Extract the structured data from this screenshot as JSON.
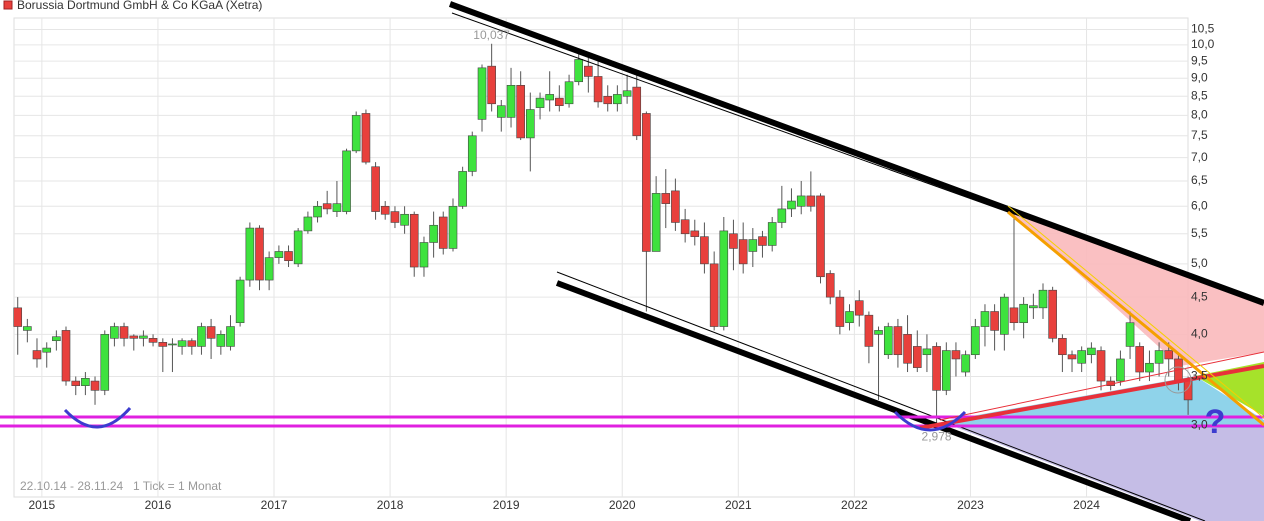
{
  "chart_data": {
    "type": "candlestick",
    "log_scale": true,
    "grid": true,
    "x": [
      2014.792,
      2014.875,
      2014.958,
      2015.042,
      2015.125,
      2015.208,
      2015.292,
      2015.375,
      2015.458,
      2015.542,
      2015.625,
      2015.708,
      2015.792,
      2015.875,
      2015.958,
      2016.042,
      2016.125,
      2016.208,
      2016.292,
      2016.375,
      2016.458,
      2016.542,
      2016.625,
      2016.708,
      2016.792,
      2016.875,
      2016.958,
      2017.042,
      2017.125,
      2017.208,
      2017.292,
      2017.375,
      2017.458,
      2017.542,
      2017.625,
      2017.708,
      2017.792,
      2017.875,
      2017.958,
      2018.042,
      2018.125,
      2018.208,
      2018.292,
      2018.375,
      2018.458,
      2018.542,
      2018.625,
      2018.708,
      2018.792,
      2018.875,
      2018.958,
      2019.042,
      2019.125,
      2019.208,
      2019.292,
      2019.375,
      2019.458,
      2019.542,
      2019.625,
      2019.708,
      2019.792,
      2019.875,
      2019.958,
      2020.042,
      2020.125,
      2020.208,
      2020.292,
      2020.375,
      2020.458,
      2020.542,
      2020.625,
      2020.708,
      2020.792,
      2020.875,
      2020.958,
      2021.042,
      2021.125,
      2021.208,
      2021.292,
      2021.375,
      2021.458,
      2021.542,
      2021.625,
      2021.708,
      2021.792,
      2021.875,
      2021.958,
      2022.042,
      2022.125,
      2022.208,
      2022.292,
      2022.375,
      2022.458,
      2022.542,
      2022.625,
      2022.708,
      2022.792,
      2022.875,
      2022.958,
      2023.042,
      2023.125,
      2023.208,
      2023.292,
      2023.375,
      2023.458,
      2023.542,
      2023.625,
      2023.708,
      2023.792,
      2023.875,
      2023.958,
      2024.042,
      2024.125,
      2024.208,
      2024.292,
      2024.375,
      2024.458,
      2024.542,
      2024.625,
      2024.708,
      2024.792,
      2024.875
    ],
    "series": [
      {
        "name": "Borussia Dortmund GmbH & Co KGaA (Xetra)",
        "color": "#e8403c",
        "up_color": "#3ee23e",
        "down_color": "#e8403c",
        "open": [
          4.35,
          4.05,
          3.8,
          3.78,
          3.92,
          4.05,
          3.45,
          3.4,
          3.45,
          3.35,
          3.95,
          4.1,
          3.98,
          3.95,
          3.95,
          3.9,
          3.87,
          3.85,
          3.92,
          3.85,
          4.1,
          3.85,
          3.85,
          4.15,
          4.75,
          5.6,
          4.75,
          5.1,
          5.2,
          5.0,
          5.55,
          5.8,
          6.05,
          5.9,
          5.9,
          7.15,
          8.05,
          6.8,
          6.0,
          5.9,
          5.65,
          5.85,
          4.95,
          5.35,
          5.8,
          5.25,
          6.0,
          6.7,
          7.9,
          9.35,
          7.95,
          7.95,
          8.8,
          7.45,
          8.2,
          8.4,
          8.45,
          8.3,
          8.9,
          9.35,
          9.05,
          8.5,
          8.3,
          8.5,
          8.75,
          8.05,
          5.2,
          6.25,
          6.3,
          5.75,
          5.55,
          5.45,
          5.0,
          4.1,
          5.5,
          5.4,
          5.2,
          5.45,
          5.3,
          5.7,
          5.95,
          6.0,
          6.2,
          6.2,
          4.85,
          4.5,
          4.15,
          4.45,
          4.25,
          4.0,
          3.75,
          4.1,
          4.0,
          3.85,
          3.75,
          3.85,
          3.35,
          3.8,
          3.55,
          3.75,
          4.1,
          4.3,
          4.0,
          4.35,
          4.15,
          4.35,
          4.35,
          4.6,
          3.95,
          3.75,
          3.65,
          3.75,
          3.8,
          3.45,
          3.45,
          3.85,
          3.85,
          3.55,
          3.65,
          3.8,
          3.7,
          3.45
        ],
        "high": [
          4.5,
          4.2,
          3.95,
          3.9,
          4.05,
          4.1,
          3.5,
          3.55,
          3.5,
          4.05,
          4.15,
          4.15,
          4.0,
          4.05,
          4.0,
          3.95,
          3.95,
          3.95,
          3.95,
          4.15,
          4.2,
          4.05,
          4.25,
          4.8,
          5.7,
          5.65,
          5.2,
          5.3,
          5.3,
          5.6,
          5.9,
          6.1,
          6.3,
          6.5,
          7.2,
          8.1,
          8.15,
          6.9,
          6.1,
          6.0,
          6.0,
          5.9,
          5.45,
          5.9,
          5.9,
          6.15,
          6.8,
          7.6,
          9.4,
          10.037,
          8.4,
          9.3,
          9.2,
          8.6,
          8.6,
          9.2,
          8.8,
          9.1,
          9.8,
          9.6,
          9.55,
          8.8,
          8.8,
          9.1,
          9.2,
          8.1,
          6.6,
          6.75,
          6.55,
          5.95,
          5.75,
          5.7,
          5.2,
          5.8,
          5.75,
          5.7,
          5.6,
          5.55,
          5.8,
          6.4,
          6.35,
          6.5,
          6.7,
          6.25,
          4.9,
          4.6,
          4.4,
          4.6,
          4.3,
          4.1,
          4.15,
          4.2,
          4.25,
          4.05,
          4.0,
          3.9,
          3.9,
          3.9,
          3.8,
          4.2,
          4.4,
          4.4,
          4.55,
          5.95,
          4.5,
          4.55,
          4.7,
          4.65,
          4.0,
          3.8,
          3.85,
          3.9,
          3.85,
          3.5,
          3.8,
          4.3,
          3.9,
          3.8,
          3.9,
          3.9,
          3.75,
          3.5
        ],
        "low": [
          3.75,
          3.9,
          3.6,
          3.6,
          3.8,
          3.4,
          3.3,
          3.3,
          3.2,
          3.3,
          3.85,
          3.85,
          3.8,
          3.85,
          3.85,
          3.55,
          3.55,
          3.75,
          3.75,
          3.75,
          3.7,
          3.75,
          3.8,
          4.1,
          4.65,
          4.6,
          4.6,
          5.0,
          4.95,
          4.95,
          5.5,
          5.7,
          5.85,
          5.8,
          5.85,
          7.1,
          6.85,
          5.75,
          5.75,
          5.6,
          5.5,
          4.8,
          4.8,
          5.1,
          5.15,
          5.2,
          5.95,
          6.6,
          7.6,
          8.1,
          7.6,
          7.7,
          7.4,
          6.7,
          7.9,
          8.1,
          8.1,
          8.2,
          8.8,
          8.6,
          8.2,
          8.1,
          8.1,
          8.3,
          7.4,
          4.3,
          5.2,
          5.6,
          5.55,
          5.35,
          5.3,
          4.85,
          4.05,
          4.05,
          4.9,
          4.85,
          4.95,
          5.1,
          5.2,
          5.6,
          5.8,
          5.85,
          5.9,
          4.7,
          4.4,
          4.0,
          4.05,
          4.1,
          3.65,
          3.25,
          3.7,
          3.6,
          3.55,
          3.55,
          3.55,
          2.978,
          3.3,
          3.5,
          3.5,
          3.7,
          3.85,
          3.8,
          3.8,
          4.05,
          3.95,
          4.2,
          4.2,
          3.9,
          3.55,
          3.55,
          3.55,
          3.65,
          3.35,
          3.35,
          3.4,
          3.7,
          3.45,
          3.45,
          3.5,
          3.5,
          3.35,
          3.1
        ],
        "close": [
          4.1,
          4.1,
          3.7,
          3.83,
          3.97,
          3.45,
          3.4,
          3.48,
          3.35,
          4.0,
          4.1,
          3.95,
          3.95,
          3.98,
          3.9,
          3.85,
          3.88,
          3.92,
          3.85,
          4.1,
          3.95,
          4.0,
          4.1,
          4.75,
          5.6,
          4.75,
          5.1,
          5.2,
          5.05,
          5.55,
          5.8,
          6.0,
          5.95,
          6.05,
          7.15,
          8.0,
          6.9,
          5.9,
          5.85,
          5.7,
          5.85,
          4.95,
          5.35,
          5.65,
          5.25,
          6.0,
          6.7,
          7.5,
          9.3,
          8.3,
          8.25,
          8.8,
          7.45,
          8.15,
          8.45,
          8.55,
          8.25,
          8.9,
          9.55,
          9.05,
          8.35,
          8.3,
          8.55,
          8.65,
          7.5,
          5.2,
          6.25,
          6.05,
          5.7,
          5.5,
          5.45,
          5.0,
          4.1,
          5.55,
          5.25,
          5.0,
          5.4,
          5.3,
          5.7,
          5.95,
          6.1,
          6.2,
          6.0,
          4.8,
          4.5,
          4.1,
          4.3,
          4.25,
          3.85,
          4.05,
          4.1,
          3.75,
          3.65,
          3.6,
          3.82,
          3.35,
          3.8,
          3.7,
          3.75,
          4.1,
          4.3,
          4.05,
          4.5,
          4.15,
          4.4,
          4.38,
          4.6,
          3.95,
          3.75,
          3.7,
          3.8,
          3.83,
          3.45,
          3.4,
          3.7,
          4.15,
          3.55,
          3.65,
          3.8,
          3.7,
          3.45,
          3.25
        ]
      }
    ],
    "high_label": {
      "value": 10.037,
      "label": "10,037"
    },
    "low_label": {
      "value": 2.978,
      "label": "2,978"
    },
    "xlim": [
      2014.76,
      2024.9
    ],
    "xticks": [
      2015,
      2016,
      2017,
      2018,
      2019,
      2020,
      2021,
      2022,
      2023,
      2024
    ],
    "ylim": [
      2.39,
      10.89
    ],
    "yticks": [
      {
        "value": 3,
        "label": "3,0"
      },
      {
        "value": 3.5,
        "label": "3,5"
      },
      {
        "value": 4,
        "label": "4,0"
      },
      {
        "value": 4.5,
        "label": "4,5"
      },
      {
        "value": 5,
        "label": "5,0"
      },
      {
        "value": 5.5,
        "label": "5,5"
      },
      {
        "value": 6,
        "label": "6,0"
      },
      {
        "value": 6.5,
        "label": "6,5"
      },
      {
        "value": 7,
        "label": "7,0"
      },
      {
        "value": 7.5,
        "label": "7,5"
      },
      {
        "value": 8,
        "label": "8,0"
      },
      {
        "value": 8.5,
        "label": "8,5"
      },
      {
        "value": 9,
        "label": "9,0"
      },
      {
        "value": 9.5,
        "label": "9,5"
      },
      {
        "value": 10,
        "label": "10,0"
      },
      {
        "value": 10.5,
        "label": "10,5"
      }
    ],
    "period": "22.10.14 - 28.11.24",
    "tick_note": "1 Tick = 1 Monat",
    "annotation": "?"
  }
}
